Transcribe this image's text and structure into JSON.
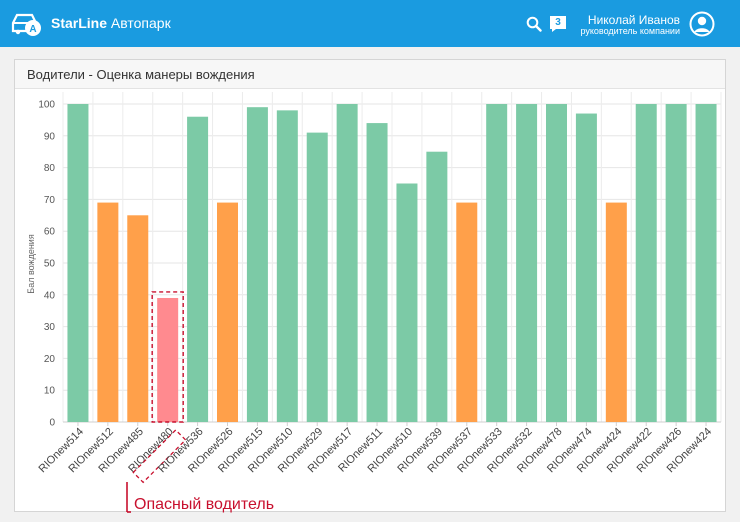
{
  "app": {
    "brand_bold": "StarLine",
    "brand_rest": "Автопарк",
    "notifications": "3",
    "user_name": "Николай Иванов",
    "user_role": "руководитель компании",
    "colors": {
      "bar_bg": "#1a9be0",
      "good": "#7ccaa6",
      "medium": "#ffa04a",
      "dangerous": "#ff8a8f",
      "annotation": "#c8102e"
    },
    "icons": [
      "logo-car-icon",
      "search-icon",
      "notification-icon",
      "user-avatar-icon"
    ]
  },
  "panel": {
    "title": "Водители - Оценка манеры вождения"
  },
  "annotation": "Опасный водитель",
  "chart_data": {
    "type": "bar",
    "ylabel": "Бал вождения",
    "xlabel": "",
    "ylim": [
      0,
      100
    ],
    "yticks": [
      0,
      10,
      20,
      30,
      40,
      50,
      60,
      70,
      80,
      90,
      100
    ],
    "grid": true,
    "categories": [
      "RIOnew514",
      "RIOnew512",
      "RIOnew485",
      "RIOnew480",
      "RIOnew536",
      "RIOnew526",
      "RIOnew515",
      "RIOnew510",
      "RIOnew529",
      "RIOnew517",
      "RIOnew511",
      "RIOnew510",
      "RIOnew539",
      "RIOnew537",
      "RIOnew533",
      "RIOnew532",
      "RIOnew478",
      "RIOnew474",
      "RIOnew424",
      "RIOnew422",
      "RIOnew426",
      "RIOnew424"
    ],
    "values": [
      100,
      69,
      65,
      39,
      96,
      69,
      99,
      98,
      91,
      100,
      94,
      75,
      85,
      69,
      100,
      100,
      100,
      97,
      69,
      100,
      100,
      100
    ],
    "bar_colors": [
      "good",
      "medium",
      "medium",
      "dangerous",
      "good",
      "medium",
      "good",
      "good",
      "good",
      "good",
      "good",
      "good",
      "good",
      "medium",
      "good",
      "good",
      "good",
      "good",
      "medium",
      "good",
      "good",
      "good"
    ],
    "highlighted": "RIOnew480"
  }
}
